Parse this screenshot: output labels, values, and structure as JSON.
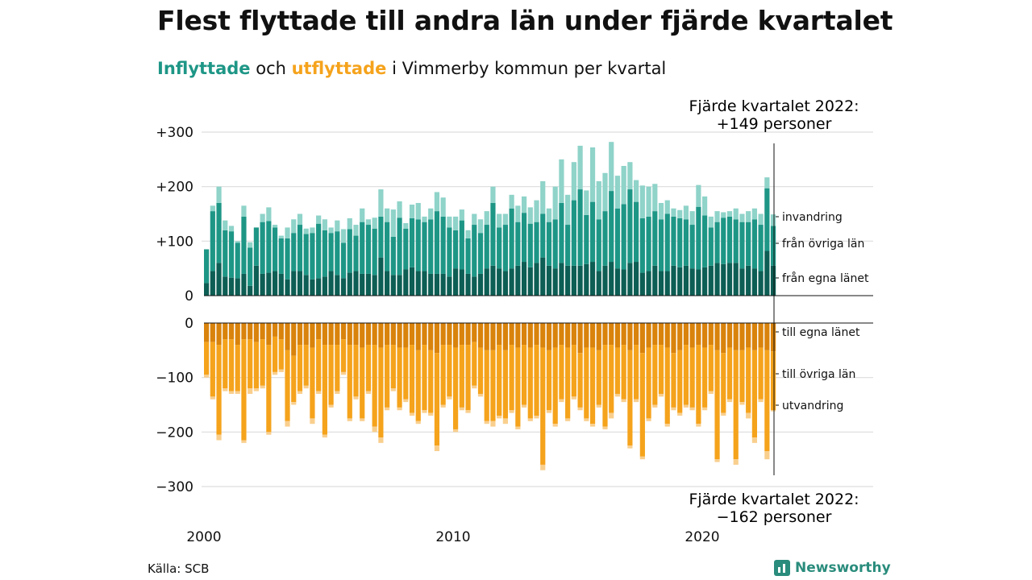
{
  "header": {
    "title": "Flest flyttade till andra län under fjärde kvartalet",
    "subtitle_in": "Inflyttade",
    "subtitle_mid": " och ",
    "subtitle_out": "utflyttade",
    "subtitle_rest": " i Vimmerby kommun per kvartal"
  },
  "annotations": {
    "top_line1": "Fjärde kvartalet 2022:",
    "top_line2": "+149 personer",
    "bottom_line1": "Fjärde kvartalet 2022:",
    "bottom_line2": "−162 personer"
  },
  "footer": {
    "source": "Källa: SCB",
    "brand": "Newsworthy"
  },
  "colors": {
    "in_own": "#0d5e54",
    "in_other": "#1e9686",
    "in_immig": "#8fd3c9",
    "out_own": "#d9830c",
    "out_other": "#f5a31c",
    "out_emig": "#f9cf8e"
  },
  "chart_data": {
    "type": "bar",
    "stacked": true,
    "x_start_year": 2000,
    "periods_per_year": 4,
    "periods": 92,
    "xticks": [
      {
        "value": 2000,
        "label": "2000"
      },
      {
        "value": 2010,
        "label": "2010"
      },
      {
        "value": 2020,
        "label": "2020"
      }
    ],
    "in_panel": {
      "ylim": [
        0,
        300
      ],
      "yticks": [
        {
          "value": 0,
          "label": "0"
        },
        {
          "value": 100,
          "label": "+100"
        },
        {
          "value": 200,
          "label": "+200"
        },
        {
          "value": 300,
          "label": "+300"
        }
      ],
      "series": [
        {
          "name": "från egna länet",
          "values": [
            23,
            45,
            60,
            35,
            33,
            32,
            40,
            18,
            55,
            40,
            42,
            45,
            40,
            30,
            45,
            45,
            38,
            30,
            32,
            35,
            45,
            38,
            32,
            42,
            45,
            40,
            40,
            38,
            70,
            45,
            38,
            38,
            48,
            52,
            45,
            45,
            40,
            40,
            40,
            35,
            50,
            48,
            40,
            35,
            40,
            50,
            55,
            50,
            45,
            50,
            55,
            62,
            52,
            60,
            70,
            55,
            50,
            60,
            55,
            55,
            55,
            58,
            62,
            45,
            55,
            62,
            50,
            48,
            60,
            62,
            42,
            45,
            55,
            45,
            45,
            55,
            52,
            55,
            50,
            48,
            52,
            55,
            60,
            58,
            60,
            60,
            50,
            55,
            50,
            45,
            82,
            55
          ]
        },
        {
          "name": "från övriga län",
          "values": [
            62,
            110,
            110,
            85,
            85,
            65,
            105,
            70,
            70,
            95,
            95,
            80,
            65,
            75,
            70,
            85,
            75,
            85,
            100,
            85,
            70,
            80,
            65,
            80,
            65,
            95,
            90,
            85,
            75,
            90,
            70,
            105,
            75,
            90,
            95,
            90,
            100,
            115,
            105,
            90,
            70,
            90,
            65,
            95,
            75,
            80,
            115,
            75,
            85,
            110,
            80,
            90,
            80,
            75,
            80,
            80,
            90,
            110,
            75,
            120,
            140,
            90,
            110,
            95,
            100,
            130,
            110,
            120,
            135,
            110,
            100,
            100,
            100,
            95,
            105,
            90,
            90,
            85,
            80,
            115,
            95,
            70,
            75,
            85,
            85,
            80,
            85,
            80,
            90,
            85,
            115,
            73
          ]
        },
        {
          "name": "invandring",
          "values": [
            0,
            10,
            30,
            18,
            10,
            3,
            20,
            10,
            0,
            15,
            25,
            5,
            5,
            20,
            25,
            20,
            10,
            10,
            15,
            20,
            10,
            20,
            25,
            20,
            20,
            25,
            10,
            20,
            50,
            25,
            50,
            30,
            10,
            25,
            30,
            10,
            20,
            35,
            35,
            20,
            25,
            20,
            15,
            20,
            25,
            25,
            30,
            25,
            20,
            25,
            30,
            30,
            30,
            40,
            60,
            25,
            60,
            80,
            55,
            70,
            80,
            45,
            100,
            70,
            70,
            90,
            60,
            70,
            50,
            40,
            60,
            55,
            50,
            30,
            25,
            15,
            15,
            25,
            25,
            40,
            35,
            20,
            20,
            10,
            10,
            20,
            15,
            20,
            20,
            20,
            20,
            21
          ]
        }
      ]
    },
    "out_panel": {
      "ylim": [
        -300,
        0
      ],
      "yticks": [
        {
          "value": 0,
          "label": "0"
        },
        {
          "value": -100,
          "label": "−100"
        },
        {
          "value": -200,
          "label": "−200"
        },
        {
          "value": -300,
          "label": "−300"
        }
      ],
      "series": [
        {
          "name": "till egna länet",
          "values": [
            35,
            35,
            40,
            30,
            30,
            40,
            30,
            30,
            35,
            30,
            40,
            25,
            30,
            50,
            60,
            40,
            40,
            45,
            30,
            40,
            40,
            40,
            30,
            40,
            40,
            45,
            40,
            40,
            45,
            40,
            40,
            45,
            45,
            40,
            50,
            40,
            50,
            55,
            40,
            40,
            45,
            40,
            40,
            35,
            45,
            50,
            50,
            40,
            50,
            40,
            45,
            40,
            45,
            40,
            45,
            50,
            45,
            40,
            45,
            40,
            55,
            45,
            45,
            50,
            40,
            40,
            45,
            40,
            50,
            40,
            55,
            45,
            40,
            40,
            45,
            55,
            50,
            40,
            45,
            40,
            45,
            40,
            50,
            55,
            45,
            50,
            50,
            45,
            50,
            45,
            50,
            52
          ]
        },
        {
          "name": "till övriga län",
          "values": [
            60,
            100,
            165,
            90,
            95,
            85,
            185,
            90,
            85,
            85,
            160,
            65,
            55,
            130,
            85,
            85,
            75,
            130,
            95,
            165,
            110,
            85,
            60,
            135,
            95,
            130,
            85,
            150,
            165,
            115,
            80,
            110,
            95,
            125,
            130,
            120,
            115,
            170,
            110,
            95,
            150,
            115,
            120,
            80,
            85,
            130,
            130,
            130,
            125,
            120,
            145,
            110,
            130,
            130,
            215,
            110,
            140,
            100,
            130,
            95,
            100,
            130,
            140,
            100,
            150,
            125,
            85,
            100,
            175,
            100,
            190,
            130,
            110,
            90,
            140,
            100,
            115,
            110,
            110,
            145,
            110,
            85,
            200,
            110,
            95,
            200,
            95,
            120,
            160,
            95,
            185,
            108
          ]
        },
        {
          "name": "utvandring",
          "values": [
            5,
            5,
            10,
            5,
            5,
            5,
            5,
            10,
            5,
            5,
            5,
            5,
            5,
            10,
            5,
            5,
            5,
            10,
            5,
            5,
            5,
            5,
            5,
            5,
            5,
            5,
            5,
            10,
            10,
            5,
            5,
            5,
            5,
            5,
            5,
            5,
            5,
            10,
            5,
            5,
            5,
            5,
            5,
            5,
            5,
            5,
            10,
            5,
            10,
            5,
            5,
            5,
            5,
            5,
            10,
            5,
            5,
            5,
            5,
            5,
            5,
            5,
            5,
            5,
            5,
            10,
            5,
            5,
            5,
            5,
            5,
            5,
            5,
            5,
            5,
            5,
            5,
            5,
            5,
            5,
            5,
            5,
            5,
            5,
            5,
            10,
            5,
            10,
            10,
            5,
            15,
            2
          ]
        }
      ]
    },
    "series_labels_in": [
      "invandring",
      "från övriga län",
      "från egna länet"
    ],
    "series_labels_out": [
      "till egna länet",
      "till övriga län",
      "utvandring"
    ]
  }
}
